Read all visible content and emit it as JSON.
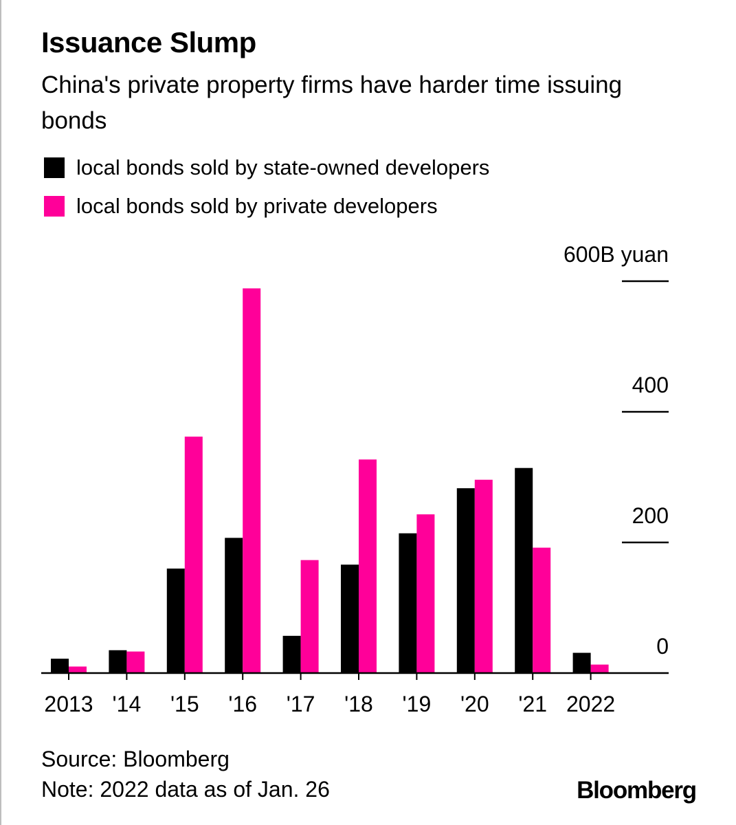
{
  "title": "Issuance Slump",
  "subtitle": "China's private property firms have harder time issuing bonds",
  "legend": [
    {
      "label": "local bonds sold by state-owned developers",
      "color": "#000000"
    },
    {
      "label": "local bonds sold by private developers",
      "color": "#ff0099"
    }
  ],
  "source": "Source: Bloomberg",
  "note": "Note: 2022 data as of Jan. 26",
  "logo_text": "Bloomberg",
  "chart_data": {
    "type": "bar",
    "categories": [
      "2013",
      "'14",
      "'15",
      "'16",
      "'17",
      "'18",
      "'19",
      "'20",
      "'21",
      "2022"
    ],
    "series": [
      {
        "name": "local bonds sold by state-owned developers",
        "color": "#000000",
        "values": [
          22,
          35,
          160,
          207,
          57,
          166,
          214,
          283,
          314,
          31
        ]
      },
      {
        "name": "local bonds sold by private developers",
        "color": "#ff0099",
        "values": [
          10,
          33,
          362,
          589,
          173,
          327,
          243,
          296,
          192,
          13
        ]
      }
    ],
    "yticks": [
      {
        "value": 0,
        "label": "0"
      },
      {
        "value": 200,
        "label": "200"
      },
      {
        "value": 400,
        "label": "400"
      },
      {
        "value": 600,
        "label": "600B yuan"
      }
    ],
    "ylim": [
      0,
      600
    ],
    "ylabel": "",
    "xlabel": "",
    "grid": false,
    "axis_side": "right"
  }
}
